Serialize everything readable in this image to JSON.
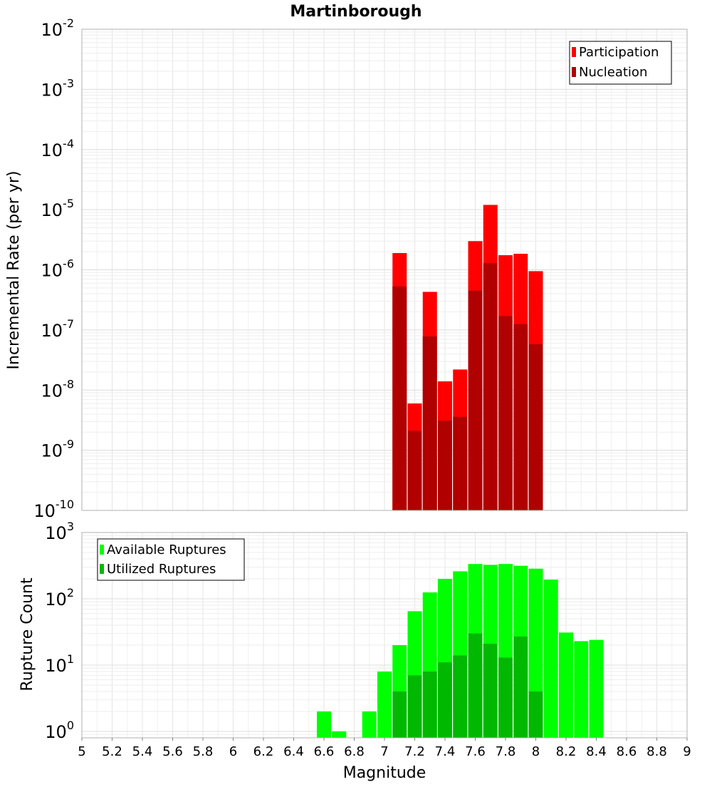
{
  "chart_data": [
    {
      "type": "bar",
      "title": "Martinborough",
      "xlabel": "",
      "ylabel": "Incremental Rate (per yr)",
      "yscale": "log",
      "ylim": [
        1e-10,
        0.01
      ],
      "xlim": [
        5,
        9
      ],
      "grid": true,
      "legend_position": "top-right",
      "y_tick_exponents": [
        "-2",
        "-3",
        "-4",
        "-5",
        "-6",
        "-7",
        "-8",
        "-9",
        "-10"
      ],
      "x": [
        7.1,
        7.2,
        7.3,
        7.4,
        7.5,
        7.6,
        7.7,
        7.8,
        7.9,
        8.0
      ],
      "series": [
        {
          "name": "Participation",
          "color": "#ff0000",
          "values": [
            1.9e-06,
            6e-09,
            4.3e-07,
            1.4e-08,
            2.2e-08,
            3e-06,
            1.2e-05,
            1.75e-06,
            1.85e-06,
            9.5e-07
          ]
        },
        {
          "name": "Nucleation",
          "color": "#b00000",
          "values": [
            5.3e-07,
            2.1e-09,
            7.8e-08,
            3.1e-09,
            3.6e-09,
            4.5e-07,
            1.3e-06,
            1.7e-07,
            1.25e-07,
            5.8e-08
          ]
        }
      ]
    },
    {
      "type": "bar",
      "title": "",
      "xlabel": "Magnitude",
      "ylabel": "Rupture Count",
      "yscale": "log",
      "ylim": [
        0.8,
        1000
      ],
      "xlim": [
        5,
        9
      ],
      "grid": true,
      "legend_position": "top-left",
      "y_tick_exponents": [
        "3",
        "2",
        "1",
        "0"
      ],
      "x_tick_labels": [
        "5",
        "5.2",
        "5.4",
        "5.6",
        "5.8",
        "6",
        "6.2",
        "6.4",
        "6.6",
        "6.8",
        "7",
        "7.2",
        "7.4",
        "7.6",
        "7.8",
        "8",
        "8.2",
        "8.4",
        "8.6",
        "8.8",
        "9"
      ],
      "x": [
        6.6,
        6.7,
        6.9,
        7.0,
        7.1,
        7.2,
        7.3,
        7.4,
        7.5,
        7.6,
        7.7,
        7.8,
        7.9,
        8.0,
        8.1,
        8.2,
        8.3,
        8.4
      ],
      "series": [
        {
          "name": "Available Ruptures",
          "color": "#00ff00",
          "values": [
            2,
            1,
            2,
            8,
            20,
            65,
            125,
            200,
            260,
            335,
            325,
            335,
            315,
            285,
            195,
            31,
            23,
            24
          ]
        },
        {
          "name": "Utilized Ruptures",
          "color": "#00b800",
          "values": [
            null,
            null,
            null,
            null,
            4,
            7,
            8,
            11,
            14,
            30,
            21,
            13,
            27,
            4,
            null,
            null,
            null,
            null
          ]
        }
      ]
    }
  ]
}
